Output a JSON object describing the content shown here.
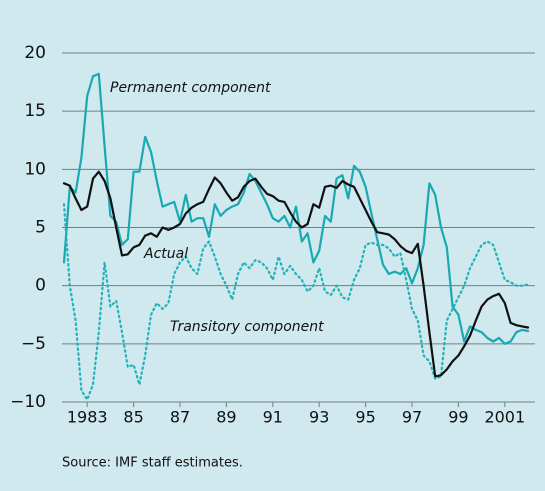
{
  "chart_data": {
    "type": "line",
    "source": "Source: IMF staff estimates.",
    "annotations": [
      {
        "text": "Permanent component"
      },
      {
        "text": "Actual"
      },
      {
        "text": "Transitory component"
      }
    ],
    "x": [
      1982,
      1982.25,
      1982.5,
      1982.75,
      1983,
      1983.25,
      1983.5,
      1983.75,
      1984,
      1984.25,
      1984.5,
      1984.75,
      1985,
      1985.25,
      1985.5,
      1985.75,
      1986,
      1986.25,
      1986.5,
      1986.75,
      1987,
      1987.25,
      1987.5,
      1987.75,
      1988,
      1988.25,
      1988.5,
      1988.75,
      1989,
      1989.25,
      1989.5,
      1989.75,
      1990,
      1990.25,
      1990.5,
      1990.75,
      1991,
      1991.25,
      1991.5,
      1991.75,
      1992,
      1992.25,
      1992.5,
      1992.75,
      1993,
      1993.25,
      1993.5,
      1993.75,
      1994,
      1994.25,
      1994.5,
      1994.75,
      1995,
      1995.25,
      1995.5,
      1995.75,
      1996,
      1996.25,
      1996.5,
      1996.75,
      1997,
      1997.25,
      1997.5,
      1997.75,
      1998,
      1998.25,
      1998.5,
      1998.75,
      1999,
      1999.25,
      1999.5,
      1999.75,
      2000,
      2000.25,
      2000.5,
      2000.75,
      2001,
      2001.25,
      2001.5,
      2001.75,
      2002
    ],
    "series": [
      {
        "name": "Permanent component",
        "color": "#1aa9b1",
        "dash": false,
        "values": [
          2,
          8.5,
          8,
          11,
          16.3,
          18,
          18.2,
          12,
          6,
          5.5,
          3.5,
          4,
          9.8,
          9.8,
          12.8,
          11.5,
          9,
          6.8,
          7,
          7.2,
          5.5,
          7.8,
          5.5,
          5.8,
          5.8,
          4.2,
          7,
          6,
          6.5,
          6.8,
          7,
          8,
          9.6,
          9,
          8,
          7,
          5.8,
          5.5,
          6,
          5,
          6.8,
          3.8,
          4.5,
          2,
          3,
          6,
          5.5,
          9.2,
          9.5,
          7.5,
          10.3,
          9.8,
          8.5,
          6.2,
          4,
          1.8,
          1,
          1.2,
          1,
          1.5,
          0.2,
          1.5,
          3.5,
          8.8,
          7.8,
          5,
          3.3,
          -1.8,
          -2.5,
          -4.8,
          -3.5,
          -3.8,
          -4,
          -4.5,
          -4.8,
          -4.5,
          -5,
          -4.8,
          -4,
          -3.8,
          -3.9
        ]
      },
      {
        "name": "Transitory component",
        "color": "#22b3b8",
        "dash": true,
        "values": [
          7,
          0,
          -3,
          -9,
          -9.8,
          -8.5,
          -4,
          2,
          -1.8,
          -1.3,
          -4,
          -7,
          -6.8,
          -8.5,
          -6,
          -2.5,
          -1.5,
          -2,
          -1.5,
          1,
          2,
          2.5,
          1.5,
          1,
          3.2,
          3.8,
          2.5,
          1,
          0,
          -1.2,
          1,
          2,
          1.5,
          2.2,
          2,
          1.5,
          0.5,
          2.5,
          1,
          1.7,
          1,
          0.5,
          -0.5,
          0,
          1.5,
          -0.5,
          -0.8,
          0,
          -1,
          -1.2,
          0.5,
          1.5,
          3.5,
          3.7,
          3.5,
          3.5,
          3.2,
          2.5,
          2.8,
          0.5,
          -2,
          -3,
          -6,
          -6.5,
          -8,
          -7.8,
          -3,
          -2,
          -1,
          0,
          1.5,
          2.5,
          3.5,
          3.8,
          3.5,
          2,
          0.5,
          0.3,
          0,
          0,
          0.1
        ]
      },
      {
        "name": "Actual",
        "color": "#111111",
        "dash": false,
        "values": [
          8.8,
          8.6,
          7.5,
          6.5,
          6.8,
          9.2,
          9.8,
          9.0,
          7.5,
          5.0,
          2.6,
          2.7,
          3.3,
          3.5,
          4.3,
          4.5,
          4.2,
          5.0,
          4.8,
          5.0,
          5.3,
          6.2,
          6.7,
          7.0,
          7.2,
          8.3,
          9.3,
          8.8,
          8.0,
          7.3,
          7.6,
          8.5,
          9.0,
          9.2,
          8.5,
          7.9,
          7.7,
          7.3,
          7.2,
          6.3,
          5.5,
          5.0,
          5.3,
          7.0,
          6.7,
          8.5,
          8.6,
          8.4,
          9.0,
          8.7,
          8.5,
          7.5,
          6.5,
          5.5,
          4.6,
          4.5,
          4.4,
          4.0,
          3.4,
          3.0,
          2.8,
          3.6,
          0.0,
          -4.0,
          -7.8,
          -7.7,
          -7.2,
          -6.5,
          -6.0,
          -5.2,
          -4.3,
          -3.0,
          -1.8,
          -1.2,
          -0.9,
          -0.7,
          -1.5,
          -3.2,
          -3.4,
          -3.5,
          -3.6
        ]
      }
    ],
    "xlim": [
      1982,
      2002
    ],
    "xticks": [
      1983,
      {
        "value": 1985,
        "label": "85"
      },
      {
        "value": 1987,
        "label": "87"
      },
      {
        "value": 1989,
        "label": "89"
      },
      {
        "value": 1991,
        "label": "91"
      },
      {
        "value": 1993,
        "label": "93"
      },
      {
        "value": 1995,
        "label": "95"
      },
      {
        "value": 1997,
        "label": "97"
      },
      {
        "value": 1999,
        "label": "99"
      },
      2001
    ],
    "ylim": [
      -10,
      20
    ],
    "yticks": [
      {
        "value": -10,
        "label": "−10"
      },
      {
        "value": -5,
        "label": "−5"
      },
      0,
      5,
      10,
      15,
      20
    ],
    "grid": true
  }
}
